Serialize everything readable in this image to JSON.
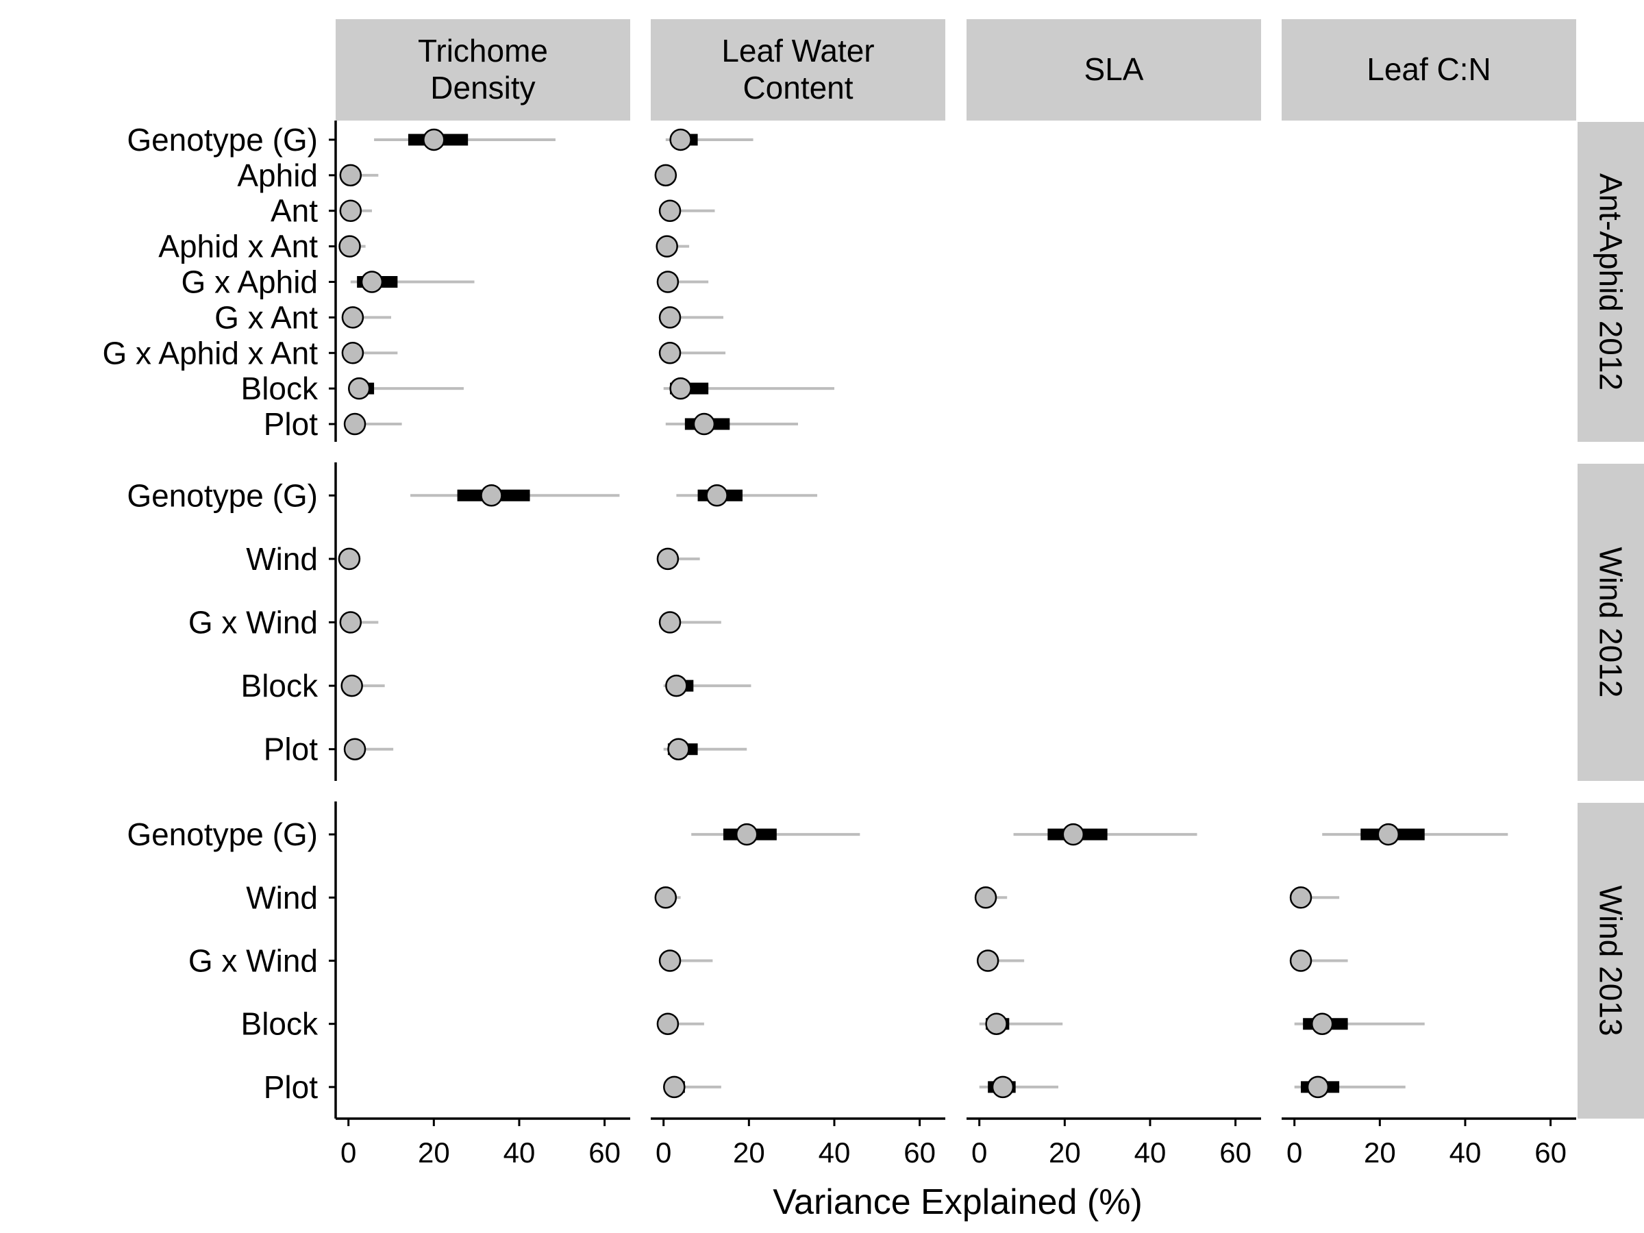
{
  "chart_data": {
    "type": "scatter",
    "xlabel": "Variance Explained (%)",
    "xlim": [
      -3,
      66
    ],
    "xticks": [
      "0",
      "20",
      "40",
      "60"
    ],
    "facet_columns": [
      {
        "lines": [
          "Trichome",
          "Density"
        ]
      },
      {
        "lines": [
          "Leaf Water",
          "Content"
        ]
      },
      {
        "lines": [
          "SLA"
        ]
      },
      {
        "lines": [
          "Leaf C:N"
        ]
      }
    ],
    "facet_rows": [
      {
        "label": "Ant-Aphid 2012",
        "terms": [
          "Genotype (G)",
          "Aphid",
          "Ant",
          "Aphid x Ant",
          "G x Aphid",
          "G x Ant",
          "G x Aphid x Ant",
          "Block",
          "Plot"
        ],
        "panels": [
          [
            {
              "est": 20,
              "lo50": 14,
              "hi50": 28,
              "lo95": 6,
              "hi95": 48.5
            },
            {
              "est": 0.5,
              "lo50": 0,
              "hi50": 1.5,
              "lo95": 0,
              "hi95": 7
            },
            {
              "est": 0.5,
              "lo50": 0,
              "hi50": 1.5,
              "lo95": 0,
              "hi95": 5.5
            },
            {
              "est": 0.3,
              "lo50": 0,
              "hi50": 1,
              "lo95": 0,
              "hi95": 4
            },
            {
              "est": 5.5,
              "lo50": 2,
              "hi50": 11.5,
              "lo95": 0.5,
              "hi95": 29.5
            },
            {
              "est": 1,
              "lo50": 0,
              "hi50": 2.5,
              "lo95": 0,
              "hi95": 10
            },
            {
              "est": 1,
              "lo50": 0,
              "hi50": 2.5,
              "lo95": 0,
              "hi95": 11.5
            },
            {
              "est": 2.5,
              "lo50": 0.5,
              "hi50": 6,
              "lo95": 0,
              "hi95": 27
            },
            {
              "est": 1.5,
              "lo50": 0,
              "hi50": 3,
              "lo95": 0,
              "hi95": 12.5
            }
          ],
          [
            {
              "est": 4,
              "lo50": 2,
              "hi50": 8,
              "lo95": 0.5,
              "hi95": 21
            },
            {
              "est": 0.5,
              "lo50": 0,
              "hi50": 1,
              "lo95": 0,
              "hi95": 3
            },
            {
              "est": 1.5,
              "lo50": 0,
              "hi50": 3,
              "lo95": 0,
              "hi95": 12
            },
            {
              "est": 0.8,
              "lo50": 0,
              "hi50": 1.5,
              "lo95": 0,
              "hi95": 6
            },
            {
              "est": 1,
              "lo50": 0,
              "hi50": 2.5,
              "lo95": 0,
              "hi95": 10.5
            },
            {
              "est": 1.5,
              "lo50": 0,
              "hi50": 3,
              "lo95": 0,
              "hi95": 14
            },
            {
              "est": 1.5,
              "lo50": 0,
              "hi50": 3,
              "lo95": 0,
              "hi95": 14.5
            },
            {
              "est": 4,
              "lo50": 1.5,
              "hi50": 10.5,
              "lo95": 0,
              "hi95": 40
            },
            {
              "est": 9.5,
              "lo50": 5,
              "hi50": 15.5,
              "lo95": 0.5,
              "hi95": 31.5
            }
          ],
          null,
          null
        ]
      },
      {
        "label": "Wind 2012",
        "terms": [
          "Genotype (G)",
          "Wind",
          "G x Wind",
          "Block",
          "Plot"
        ],
        "panels": [
          [
            {
              "est": 33.5,
              "lo50": 25.5,
              "hi50": 42.5,
              "lo95": 14.5,
              "hi95": 63.5
            },
            {
              "est": 0.2,
              "lo50": 0,
              "hi50": 0.5,
              "lo95": 0,
              "hi95": 2.5
            },
            {
              "est": 0.5,
              "lo50": 0,
              "hi50": 1.5,
              "lo95": 0,
              "hi95": 7
            },
            {
              "est": 0.8,
              "lo50": 0,
              "hi50": 2,
              "lo95": 0,
              "hi95": 8.5
            },
            {
              "est": 1.5,
              "lo50": 0,
              "hi50": 3,
              "lo95": 0,
              "hi95": 10.5
            }
          ],
          [
            {
              "est": 12.5,
              "lo50": 8,
              "hi50": 18.5,
              "lo95": 3,
              "hi95": 36
            },
            {
              "est": 1,
              "lo50": 0,
              "hi50": 2,
              "lo95": 0,
              "hi95": 8.5
            },
            {
              "est": 1.5,
              "lo50": 0,
              "hi50": 3,
              "lo95": 0,
              "hi95": 13.5
            },
            {
              "est": 3,
              "lo50": 1,
              "hi50": 7,
              "lo95": 0,
              "hi95": 20.5
            },
            {
              "est": 3.5,
              "lo50": 1,
              "hi50": 8,
              "lo95": 0,
              "hi95": 19.5
            }
          ],
          null,
          null
        ]
      },
      {
        "label": "Wind 2013",
        "terms": [
          "Genotype (G)",
          "Wind",
          "G x Wind",
          "Block",
          "Plot"
        ],
        "panels": [
          null,
          [
            {
              "est": 19.5,
              "lo50": 14,
              "hi50": 26.5,
              "lo95": 6.5,
              "hi95": 46
            },
            {
              "est": 0.5,
              "lo50": 0,
              "hi50": 1,
              "lo95": 0,
              "hi95": 4
            },
            {
              "est": 1.5,
              "lo50": 0,
              "hi50": 3,
              "lo95": 0,
              "hi95": 11.5
            },
            {
              "est": 1,
              "lo50": 0,
              "hi50": 2.5,
              "lo95": 0,
              "hi95": 9.5
            },
            {
              "est": 2.5,
              "lo50": 0.5,
              "hi50": 5,
              "lo95": 0,
              "hi95": 13.5
            }
          ],
          [
            {
              "est": 22,
              "lo50": 16,
              "hi50": 30,
              "lo95": 8,
              "hi95": 51
            },
            {
              "est": 1.5,
              "lo50": 0,
              "hi50": 2.5,
              "lo95": 0,
              "hi95": 6.5
            },
            {
              "est": 2,
              "lo50": 0,
              "hi50": 3.5,
              "lo95": 0,
              "hi95": 10.5
            },
            {
              "est": 4,
              "lo50": 1.5,
              "hi50": 7,
              "lo95": 0,
              "hi95": 19.5
            },
            {
              "est": 5.5,
              "lo50": 2,
              "hi50": 8.5,
              "lo95": 0,
              "hi95": 18.5
            }
          ],
          [
            {
              "est": 22,
              "lo50": 15.5,
              "hi50": 30.5,
              "lo95": 6.5,
              "hi95": 50
            },
            {
              "est": 1.5,
              "lo50": 0,
              "hi50": 3,
              "lo95": 0,
              "hi95": 10.5
            },
            {
              "est": 1.5,
              "lo50": 0,
              "hi50": 3,
              "lo95": 0,
              "hi95": 12.5
            },
            {
              "est": 6.5,
              "lo50": 2,
              "hi50": 12.5,
              "lo95": 0,
              "hi95": 30.5
            },
            {
              "est": 5.5,
              "lo50": 1.5,
              "hi50": 10.5,
              "lo95": 0,
              "hi95": 26
            }
          ]
        ]
      }
    ],
    "grid": false,
    "legend": "none",
    "colors": {
      "point_fill": "#bdbdbd",
      "point_stroke": "#000000",
      "ci50": "#000000",
      "ci95": "#bdbdbd",
      "strip_fill": "#cccccc",
      "axis": "#000000"
    }
  }
}
